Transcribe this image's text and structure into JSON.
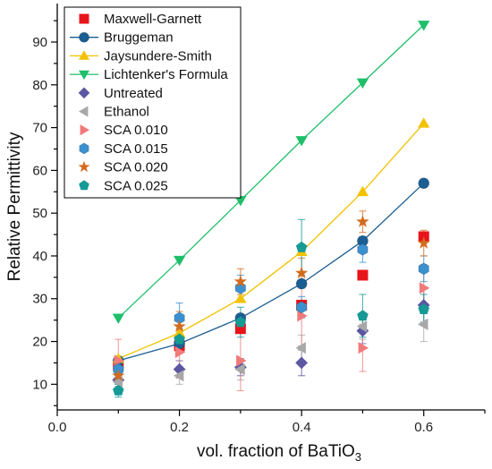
{
  "chart_data": {
    "type": "scatter",
    "xlabel_main": "vol. fraction of BaTiO",
    "xlabel_sub": "3",
    "ylabel": "Relative Permittivity",
    "xlim": [
      0.0,
      0.7
    ],
    "ylim": [
      4,
      99
    ],
    "xticks": [
      0.0,
      0.1,
      0.2,
      0.3,
      0.4,
      0.5,
      0.6,
      0.7
    ],
    "xtick_labels": [
      "0.0",
      "",
      "0.2",
      "",
      "0.4",
      "",
      "0.6",
      ""
    ],
    "yticks": [
      10,
      20,
      30,
      40,
      50,
      60,
      70,
      80,
      90
    ],
    "ytick_labels": [
      "10",
      "20",
      "30",
      "40",
      "50",
      "60",
      "70",
      "80",
      "90"
    ],
    "legend_position": "top-left",
    "series": [
      {
        "name": "Maxwell-Garnett",
        "marker": "square",
        "color": "#e8141b",
        "line": false,
        "x": [
          0.1,
          0.2,
          0.3,
          0.4,
          0.5,
          0.6
        ],
        "y": [
          14.5,
          19.0,
          23.0,
          28.5,
          35.5,
          44.5
        ],
        "err": null
      },
      {
        "name": "Bruggeman",
        "marker": "circle",
        "color": "#1a5e93",
        "line": true,
        "x": [
          0.1,
          0.2,
          0.3,
          0.4,
          0.5,
          0.6
        ],
        "y": [
          15.5,
          19.5,
          25.5,
          33.5,
          43.5,
          57.0
        ],
        "err": null
      },
      {
        "name": "Jaysundere-Smith",
        "marker": "triangle-up",
        "color": "#f2c200",
        "line": true,
        "x": [
          0.1,
          0.2,
          0.3,
          0.4,
          0.5,
          0.6
        ],
        "y": [
          16.0,
          22.0,
          30.0,
          41.0,
          55.0,
          71.0
        ],
        "err": null
      },
      {
        "name": "Lichtenker's Formula",
        "marker": "triangle-down",
        "color": "#1fbf6a",
        "line": true,
        "x": [
          0.1,
          0.2,
          0.3,
          0.4,
          0.5,
          0.6
        ],
        "y": [
          25.5,
          39.0,
          53.0,
          67.0,
          80.5,
          94.0
        ],
        "err": null
      },
      {
        "name": "Untreated",
        "marker": "diamond",
        "color": "#5b57a3",
        "line": false,
        "x": [
          0.1,
          0.2,
          0.3,
          0.4,
          0.5,
          0.6
        ],
        "y": [
          11.0,
          13.5,
          14.0,
          15.0,
          22.5,
          28.5
        ],
        "err": [
          1.5,
          2.0,
          2.0,
          3.0,
          3.0,
          4.0
        ]
      },
      {
        "name": "Ethanol",
        "marker": "triangle-left",
        "color": "#a8a8a8",
        "line": false,
        "x": [
          0.1,
          0.2,
          0.3,
          0.4,
          0.5,
          0.6
        ],
        "y": [
          10.5,
          12.0,
          13.5,
          18.5,
          23.5,
          24.0
        ],
        "err": [
          1.5,
          2.0,
          2.5,
          3.0,
          3.0,
          4.0
        ]
      },
      {
        "name": "SCA 0.010",
        "marker": "triangle-right",
        "color": "#f07a7a",
        "line": false,
        "x": [
          0.1,
          0.2,
          0.3,
          0.4,
          0.5,
          0.6
        ],
        "y": [
          15.5,
          17.5,
          15.5,
          26.0,
          18.5,
          32.5
        ],
        "err": [
          5.0,
          6.0,
          7.0,
          7.0,
          5.5,
          5.5
        ]
      },
      {
        "name": "SCA 0.015",
        "marker": "hexagon",
        "color": "#3b90cf",
        "line": false,
        "x": [
          0.1,
          0.2,
          0.3,
          0.4,
          0.5,
          0.6
        ],
        "y": [
          13.5,
          25.5,
          32.5,
          28.0,
          41.5,
          37.0
        ],
        "err": [
          2.5,
          3.5,
          3.0,
          2.5,
          3.0,
          3.0
        ]
      },
      {
        "name": "SCA 0.020",
        "marker": "star",
        "color": "#d26b1e",
        "line": false,
        "x": [
          0.1,
          0.2,
          0.3,
          0.4,
          0.5,
          0.6
        ],
        "y": [
          12.0,
          23.5,
          34.0,
          36.0,
          48.0,
          43.0
        ],
        "err": [
          2.0,
          3.5,
          3.0,
          3.5,
          2.5,
          3.0
        ]
      },
      {
        "name": "SCA 0.025",
        "marker": "pentagon",
        "color": "#159a96",
        "line": false,
        "x": [
          0.1,
          0.2,
          0.3,
          0.4,
          0.5,
          0.6
        ],
        "y": [
          8.5,
          20.5,
          24.5,
          42.0,
          26.0,
          27.5
        ],
        "err": [
          1.5,
          2.5,
          3.5,
          6.5,
          5.0,
          3.5
        ]
      }
    ]
  }
}
